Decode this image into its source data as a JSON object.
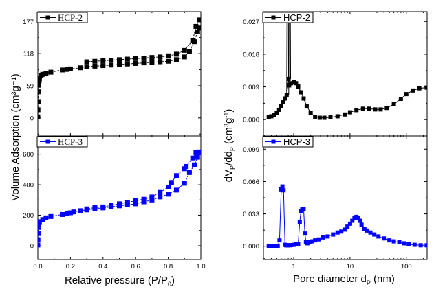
{
  "chart_data": [
    {
      "id": "iso-hcp2",
      "type": "line",
      "panel": "isotherm",
      "legend": "HCP-2",
      "color": "#000000",
      "xlim": [
        0,
        1.0
      ],
      "ylim": [
        -33,
        195
      ],
      "yticks": [
        0,
        59,
        118,
        177
      ],
      "ytick_labels": [
        "0",
        "59",
        "118",
        "177"
      ],
      "series": [
        {
          "name": "adsorption",
          "x": [
            0.0,
            0.001,
            0.002,
            0.004,
            0.006,
            0.008,
            0.01,
            0.02,
            0.03,
            0.05,
            0.08,
            0.15,
            0.18,
            0.2,
            0.26,
            0.3,
            0.35,
            0.4,
            0.45,
            0.5,
            0.55,
            0.6,
            0.65,
            0.7,
            0.75,
            0.8,
            0.85,
            0.9,
            0.93,
            0.96,
            0.98,
            0.99
          ],
          "values": [
            2,
            15,
            30,
            48,
            60,
            68,
            72,
            78,
            80,
            82,
            84,
            88,
            89,
            90,
            92,
            94,
            95,
            96,
            97,
            98,
            99,
            100,
            101,
            102,
            103,
            104,
            107,
            112,
            122,
            140,
            158,
            165
          ]
        },
        {
          "name": "desorption",
          "x": [
            0.99,
            0.97,
            0.95,
            0.9,
            0.85,
            0.8,
            0.75,
            0.7,
            0.65,
            0.6,
            0.55,
            0.5,
            0.45,
            0.4,
            0.35,
            0.3
          ],
          "values": [
            180,
            168,
            142,
            124,
            117,
            114,
            112,
            111,
            110,
            109,
            108,
            107,
            106,
            105,
            104,
            103
          ]
        }
      ]
    },
    {
      "id": "iso-hcp3",
      "type": "line",
      "panel": "isotherm",
      "legend": "HCP-3",
      "color": "#0000ff",
      "xlim": [
        0,
        1.0
      ],
      "ylim": [
        -90,
        720
      ],
      "yticks": [
        0,
        200,
        400,
        600
      ],
      "ytick_labels": [
        "0",
        "200",
        "400",
        "600"
      ],
      "xticks": [
        0.0,
        0.2,
        0.4,
        0.6,
        0.8,
        1.0
      ],
      "xtick_labels": [
        "0.0",
        "0.2",
        "0.4",
        "0.6",
        "0.8",
        "1.0"
      ],
      "xlabel": "Relative pressure (P/P0)",
      "series": [
        {
          "name": "adsorption",
          "x": [
            0.0,
            0.001,
            0.002,
            0.004,
            0.006,
            0.008,
            0.01,
            0.03,
            0.05,
            0.08,
            0.15,
            0.18,
            0.2,
            0.22,
            0.26,
            0.3,
            0.35,
            0.4,
            0.45,
            0.5,
            0.55,
            0.6,
            0.65,
            0.7,
            0.75,
            0.8,
            0.85,
            0.9,
            0.93,
            0.96,
            0.98,
            0.99
          ],
          "values": [
            5,
            40,
            80,
            120,
            140,
            150,
            158,
            172,
            183,
            192,
            205,
            212,
            216,
            222,
            230,
            235,
            242,
            248,
            255,
            262,
            268,
            275,
            288,
            300,
            320,
            338,
            365,
            410,
            480,
            530,
            580,
            610
          ]
        },
        {
          "name": "desorption",
          "x": [
            0.99,
            0.97,
            0.95,
            0.91,
            0.9,
            0.85,
            0.82,
            0.8,
            0.75,
            0.7,
            0.65,
            0.6,
            0.55,
            0.5,
            0.45,
            0.4,
            0.35,
            0.3
          ],
          "values": [
            615,
            610,
            575,
            520,
            505,
            460,
            415,
            385,
            350,
            320,
            305,
            295,
            285,
            275,
            265,
            255,
            250,
            242
          ]
        }
      ]
    },
    {
      "id": "psd-hcp2",
      "type": "line",
      "panel": "psd",
      "legend": "HCP-2",
      "color": "#000000",
      "xscale": "log",
      "xlim": [
        0.29,
        234
      ],
      "ylim": [
        -0.0045,
        0.0297
      ],
      "yticks": [
        0.0,
        0.009,
        0.018,
        0.027
      ],
      "ytick_labels": [
        "0.000",
        "0.009",
        "0.018",
        "0.027"
      ],
      "spike": {
        "x": [
          0.75,
          0.77,
          0.79,
          0.81
        ],
        "values": [
          0.0068,
          0.05,
          0.05,
          0.0112
        ]
      },
      "series": [
        {
          "name": "psd",
          "x": [
            0.36,
            0.4,
            0.45,
            0.5,
            0.55,
            0.6,
            0.65,
            0.7,
            0.75,
            0.81,
            0.83,
            0.9,
            1.0,
            1.1,
            1.2,
            1.35,
            1.5,
            1.7,
            2.0,
            2.4,
            2.9,
            3.5,
            4.5,
            6,
            8,
            10,
            13,
            17,
            22,
            28,
            35,
            45,
            60,
            80,
            100,
            130,
            170,
            230
          ],
          "values": [
            0.0007,
            0.0009,
            0.0013,
            0.0019,
            0.0027,
            0.0037,
            0.0049,
            0.0058,
            0.0068,
            0.0112,
            0.0094,
            0.01,
            0.0103,
            0.01,
            0.0091,
            0.0075,
            0.0058,
            0.0038,
            0.0018,
            0.0008,
            0.0005,
            0.0005,
            0.0006,
            0.0009,
            0.0014,
            0.002,
            0.0026,
            0.003,
            0.003,
            0.0028,
            0.0028,
            0.0032,
            0.0042,
            0.0057,
            0.007,
            0.008,
            0.0086,
            0.0088
          ]
        }
      ]
    },
    {
      "id": "psd-hcp3",
      "type": "line",
      "panel": "psd",
      "legend": "HCP-3",
      "color": "#0000ff",
      "xscale": "log",
      "xlim": [
        0.29,
        234
      ],
      "ylim": [
        -0.0135,
        0.1125
      ],
      "yticks": [
        0.0,
        0.033,
        0.066,
        0.099
      ],
      "ytick_labels": [
        "0.000",
        "0.033",
        "0.066",
        "0.099"
      ],
      "xticks": [
        1,
        10,
        100
      ],
      "xtick_labels": [
        "1",
        "10",
        "100"
      ],
      "xlabel": "Pore diameter dP (nm)",
      "series": [
        {
          "name": "psd",
          "x": [
            0.36,
            0.4,
            0.44,
            0.48,
            0.52,
            0.56,
            0.6,
            0.63,
            0.66,
            0.7,
            0.73,
            0.76,
            0.8,
            0.85,
            0.9,
            1.0,
            1.1,
            1.2,
            1.28,
            1.35,
            1.42,
            1.5,
            1.58,
            1.65,
            1.75,
            1.82,
            1.9,
            2.1,
            2.4,
            2.8,
            3.3,
            4,
            5,
            6,
            7,
            8,
            9,
            10,
            11,
            12,
            13,
            14,
            15,
            16,
            18,
            20,
            23,
            27,
            32,
            40,
            50,
            60,
            75,
            90,
            110,
            140,
            180,
            230
          ],
          "values": [
            0.0,
            0.0,
            0.0,
            0.0,
            0.0,
            0.006,
            0.058,
            0.061,
            0.057,
            0.0015,
            0.001,
            0.001,
            0.001,
            0.001,
            0.0012,
            0.0015,
            0.002,
            0.0022,
            0.025,
            0.036,
            0.038,
            0.038,
            0.013,
            0.004,
            0.003,
            0.004,
            0.0045,
            0.005,
            0.006,
            0.007,
            0.009,
            0.01,
            0.012,
            0.014,
            0.015,
            0.017,
            0.02,
            0.023,
            0.026,
            0.029,
            0.03,
            0.029,
            0.026,
            0.022,
            0.018,
            0.016,
            0.014,
            0.012,
            0.01,
            0.008,
            0.006,
            0.005,
            0.004,
            0.003,
            0.002,
            0.0015,
            0.001,
            0.001
          ]
        }
      ]
    }
  ],
  "labels": {
    "left_ylabel": "Volume Adsorption (cm³g⁻¹)",
    "right_ylabel": "dVP/ddP (cm³g⁻¹)",
    "left_xlabel_main": "Relative pressure (P/P",
    "left_xlabel_sub": "0",
    "left_xlabel_end": ")",
    "right_xlabel_main": "Pore diameter d",
    "right_xlabel_sub": "P",
    "right_xlabel_end": " (nm)"
  }
}
